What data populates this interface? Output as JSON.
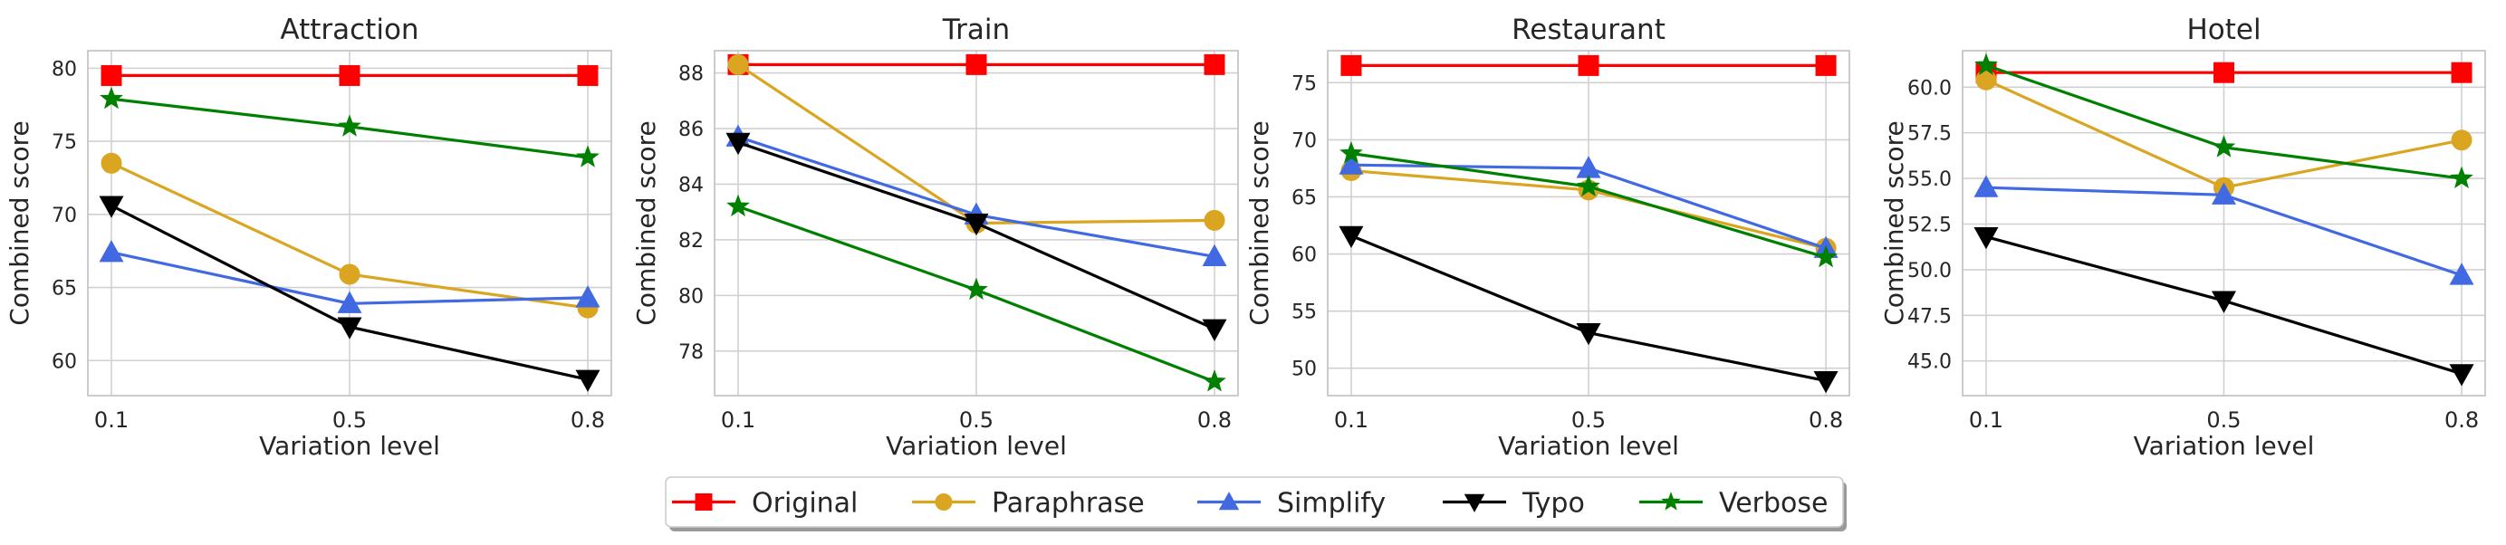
{
  "legend": {
    "placement": "bottom-center",
    "entries": [
      {
        "name": "Original",
        "color": "#ff0000",
        "marker": "square"
      },
      {
        "name": "Paraphrase",
        "color": "#daa520",
        "marker": "circle"
      },
      {
        "name": "Simplify",
        "color": "#4169e1",
        "marker": "triangle-up"
      },
      {
        "name": "Typo",
        "color": "#000000",
        "marker": "triangle-down"
      },
      {
        "name": "Verbose",
        "color": "#008000",
        "marker": "star"
      }
    ]
  },
  "chart_data": [
    {
      "type": "line",
      "title": "Attraction",
      "xlabel": "Variation level",
      "ylabel": "Combined score",
      "categories": [
        "0.1",
        "0.5",
        "0.8"
      ],
      "yticks": [
        "60",
        "65",
        "70",
        "75",
        "80"
      ],
      "ylim": [
        57.6,
        81.2
      ],
      "grid": true,
      "series": [
        {
          "name": "Original",
          "values": [
            79.5,
            79.5,
            79.5
          ]
        },
        {
          "name": "Paraphrase",
          "values": [
            73.5,
            65.9,
            63.6
          ]
        },
        {
          "name": "Simplify",
          "values": [
            67.4,
            63.9,
            64.3
          ]
        },
        {
          "name": "Typo",
          "values": [
            70.6,
            62.3,
            58.7
          ]
        },
        {
          "name": "Verbose",
          "values": [
            77.9,
            76.0,
            73.9
          ]
        }
      ]
    },
    {
      "type": "line",
      "title": "Train",
      "xlabel": "Variation level",
      "ylabel": "Combined score",
      "categories": [
        "0.1",
        "0.5",
        "0.8"
      ],
      "yticks": [
        "78",
        "80",
        "82",
        "84",
        "86",
        "88"
      ],
      "ylim": [
        76.4,
        88.8
      ],
      "grid": true,
      "series": [
        {
          "name": "Original",
          "values": [
            88.3,
            88.3,
            88.3
          ]
        },
        {
          "name": "Paraphrase",
          "values": [
            88.3,
            82.6,
            82.7
          ]
        },
        {
          "name": "Simplify",
          "values": [
            85.7,
            82.9,
            81.4
          ]
        },
        {
          "name": "Typo",
          "values": [
            85.5,
            82.6,
            78.8
          ]
        },
        {
          "name": "Verbose",
          "values": [
            83.2,
            80.2,
            76.9
          ]
        }
      ]
    },
    {
      "type": "line",
      "title": "Restaurant",
      "xlabel": "Variation level",
      "ylabel": "Combined score",
      "categories": [
        "0.1",
        "0.5",
        "0.8"
      ],
      "yticks": [
        "50",
        "55",
        "60",
        "65",
        "70",
        "75"
      ],
      "ylim": [
        47.6,
        77.8
      ],
      "grid": true,
      "series": [
        {
          "name": "Original",
          "values": [
            76.5,
            76.5,
            76.5
          ]
        },
        {
          "name": "Paraphrase",
          "values": [
            67.3,
            65.6,
            60.5
          ]
        },
        {
          "name": "Simplify",
          "values": [
            67.8,
            67.5,
            60.5
          ]
        },
        {
          "name": "Typo",
          "values": [
            61.6,
            53.1,
            48.9
          ]
        },
        {
          "name": "Verbose",
          "values": [
            68.8,
            65.9,
            59.7
          ]
        }
      ]
    },
    {
      "type": "line",
      "title": "Hotel",
      "xlabel": "Variation level",
      "ylabel": "Combined score",
      "categories": [
        "0.1",
        "0.5",
        "0.8"
      ],
      "yticks": [
        "45.0",
        "47.5",
        "50.0",
        "52.5",
        "55.0",
        "57.5",
        "60.0"
      ],
      "ylim": [
        43.1,
        62.0
      ],
      "grid": true,
      "series": [
        {
          "name": "Original",
          "values": [
            60.8,
            60.8,
            60.8
          ]
        },
        {
          "name": "Paraphrase",
          "values": [
            60.4,
            54.5,
            57.1
          ]
        },
        {
          "name": "Simplify",
          "values": [
            54.5,
            54.1,
            49.7
          ]
        },
        {
          "name": "Typo",
          "values": [
            51.8,
            48.3,
            44.3
          ]
        },
        {
          "name": "Verbose",
          "values": [
            61.2,
            56.7,
            55.0
          ]
        }
      ]
    }
  ]
}
